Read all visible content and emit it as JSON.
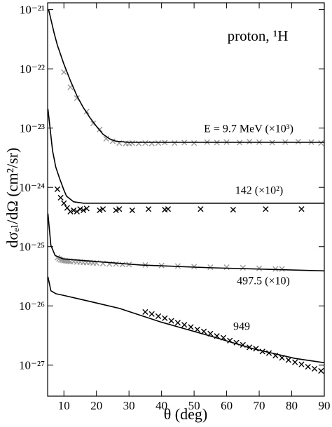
{
  "chart_data": {
    "type": "line",
    "annotation": "proton, ¹H",
    "xlabel": "θ  (deg)",
    "ylabel": "dσₑₗ/dΩ   (cm²/sr)",
    "ylog": true,
    "xlim": [
      5,
      90
    ],
    "xticks": [
      10,
      20,
      30,
      40,
      50,
      60,
      70,
      80,
      90
    ],
    "ylim": [
      3e-28,
      1.3e-21
    ],
    "yticks": [
      {
        "value": 1e-27,
        "label": "10⁻²⁷"
      },
      {
        "value": 1e-26,
        "label": "10⁻²⁶"
      },
      {
        "value": 1e-25,
        "label": "10⁻²⁵"
      },
      {
        "value": 1e-24,
        "label": "10⁻²⁴"
      },
      {
        "value": 1e-23,
        "label": "10⁻²³"
      },
      {
        "value": 1e-22,
        "label": "10⁻²²"
      },
      {
        "value": 1e-21,
        "label": "10⁻²¹"
      }
    ],
    "series": [
      {
        "name": "E = 9.7 MeV (×10³)",
        "color": "#000000",
        "x": [
          5.3,
          7,
          8,
          10,
          12,
          14,
          16,
          18,
          20,
          22,
          24,
          26,
          30,
          40,
          60,
          90
        ],
        "values": [
          1e-21,
          4e-22,
          2.5e-22,
          1.2e-22,
          6.3e-23,
          3.5e-23,
          2.2e-23,
          1.5e-23,
          1.07e-23,
          7.9e-24,
          6.6e-24,
          6e-24,
          5.75e-24,
          5.75e-24,
          5.75e-24,
          5.75e-24
        ],
        "points": {
          "color": "#9a9a9a",
          "x": [
            10,
            12,
            14,
            17,
            19,
            21,
            23,
            25,
            27,
            29,
            30,
            31,
            33,
            35,
            37,
            39,
            41,
            44,
            47,
            50,
            54,
            57,
            60,
            64,
            67,
            70,
            74,
            78,
            82,
            86,
            89
          ],
          "values": [
            8.8e-23,
            4.9e-23,
            3.2e-23,
            1.9e-23,
            1.2e-23,
            9.5e-24,
            6.6e-24,
            6e-24,
            5.6e-24,
            5.5e-24,
            5.5e-24,
            5.6e-24,
            5.5e-24,
            5.6e-24,
            5.5e-24,
            5.6e-24,
            5.7e-24,
            5.6e-24,
            5.7e-24,
            5.6e-24,
            5.8e-24,
            5.7e-24,
            5.8e-24,
            5.7e-24,
            5.9e-24,
            5.8e-24,
            5.7e-24,
            5.8e-24,
            5.9e-24,
            5.8e-24,
            5.6e-24
          ]
        }
      },
      {
        "name": "142 (×10²)",
        "color": "#000000",
        "x": [
          5.1,
          6.5,
          7.5,
          8.7,
          10,
          10.8,
          13,
          16,
          20,
          30,
          60,
          90
        ],
        "values": [
          2.1e-23,
          4.2e-24,
          2.2e-24,
          1.4e-24,
          9e-25,
          7.1e-25,
          5.7e-25,
          5.4e-25,
          5.4e-25,
          5.4e-25,
          5.4e-25,
          5.4e-25
        ],
        "points": {
          "color": "#000000",
          "x": [
            8,
            9,
            10,
            11,
            12,
            13,
            14,
            15,
            16,
            17,
            21,
            22,
            26,
            27,
            31,
            36,
            41,
            42,
            52,
            62,
            72,
            83
          ],
          "values": [
            9.3e-25,
            6.7e-25,
            5.4e-25,
            4.5e-25,
            3.9e-25,
            4.1e-25,
            3.9e-25,
            4.3e-25,
            4.1e-25,
            4.4e-25,
            4.1e-25,
            4.3e-25,
            4.1e-25,
            4.3e-25,
            4.1e-25,
            4.3e-25,
            4.2e-25,
            4.3e-25,
            4.3e-25,
            4.2e-25,
            4.3e-25,
            4.3e-25
          ]
        }
      },
      {
        "name": "497.5 (×10)",
        "color": "#000000",
        "x": [
          5.1,
          6,
          7.3,
          9.8,
          20,
          33.5,
          55,
          90
        ],
        "values": [
          3.6e-25,
          1.05e-25,
          7.1e-26,
          6.2e-26,
          5.6e-26,
          4.9e-26,
          4.4e-26,
          3.9e-26
        ],
        "points": {
          "color": "#9a9a9a",
          "x": [
            8,
            8.5,
            9,
            9.5,
            10,
            10.5,
            11,
            11.5,
            12,
            13,
            14,
            15,
            16,
            17,
            18,
            19,
            20,
            22,
            24,
            26,
            28,
            30,
            35,
            40,
            45,
            50,
            55,
            60,
            65,
            70,
            75,
            77
          ],
          "values": [
            6.5e-26,
            6.2e-26,
            6e-26,
            5.9e-26,
            5.8e-26,
            5.8e-26,
            5.7e-26,
            5.7e-26,
            5.6e-26,
            5.6e-26,
            5.5e-26,
            5.5e-26,
            5.4e-26,
            5.4e-26,
            5.4e-26,
            5.3e-26,
            5.3e-26,
            5.2e-26,
            5.1e-26,
            5.1e-26,
            5e-26,
            5e-26,
            4.9e-26,
            4.8e-26,
            4.7e-26,
            4.6e-26,
            4.5e-26,
            4.5e-26,
            4.4e-26,
            4.3e-26,
            4.2e-26,
            4.2e-26
          ]
        }
      },
      {
        "name": "949",
        "color": "#000000",
        "x": [
          5.1,
          6,
          7.6,
          10,
          16,
          27,
          40,
          55,
          68,
          81,
          90
        ],
        "values": [
          3.1e-26,
          1.8e-26,
          1.6e-26,
          1.5e-26,
          1.26e-26,
          9.1e-27,
          5.3e-27,
          3.1e-27,
          1.9e-27,
          1.3e-27,
          1.1e-27
        ],
        "points": {
          "color": "#000000",
          "x": [
            35,
            37,
            39,
            41,
            43,
            45,
            47,
            49,
            51,
            53,
            55,
            57,
            59,
            61,
            63,
            65,
            67,
            69,
            71,
            73,
            75,
            77,
            79,
            81,
            83,
            85,
            87,
            89
          ],
          "values": [
            7.9e-27,
            7.3e-27,
            6.7e-27,
            6.2e-27,
            5.6e-27,
            5.2e-27,
            4.8e-27,
            4.4e-27,
            4e-27,
            3.7e-27,
            3.4e-27,
            3.1e-27,
            2.9e-27,
            2.6e-27,
            2.4e-27,
            2.2e-27,
            2e-27,
            1.9e-27,
            1.7e-27,
            1.6e-27,
            1.45e-27,
            1.33e-27,
            1.22e-27,
            1.12e-27,
            1.03e-27,
            9.4e-28,
            8.7e-28,
            8e-28
          ]
        }
      }
    ]
  }
}
